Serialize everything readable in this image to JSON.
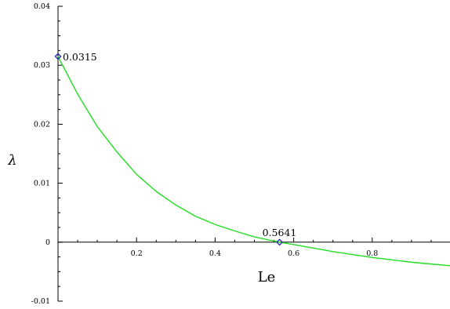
{
  "chart_data": {
    "type": "line",
    "xlabel": "Le",
    "ylabel": "λ",
    "xlim": [
      0,
      1
    ],
    "ylim": [
      -0.01,
      0.04
    ],
    "x_ticks": [
      {
        "value": 0.2,
        "label": "0.2"
      },
      {
        "value": 0.4,
        "label": "0.4"
      },
      {
        "value": 0.6,
        "label": "0.6"
      },
      {
        "value": 0.8,
        "label": "0.8"
      }
    ],
    "y_ticks": [
      {
        "value": -0.01,
        "label": "-0.01"
      },
      {
        "value": 0,
        "label": "0"
      },
      {
        "value": 0.01,
        "label": "0.01"
      },
      {
        "value": 0.02,
        "label": "0.02"
      },
      {
        "value": 0.03,
        "label": "0.03"
      },
      {
        "value": 0.04,
        "label": "0.04"
      }
    ],
    "grid": false,
    "series": [
      {
        "color": "#22dd22",
        "x": [
          0,
          0.05,
          0.1,
          0.15,
          0.2,
          0.25,
          0.3,
          0.35,
          0.4,
          0.45,
          0.5,
          0.5641,
          0.6,
          0.65,
          0.7,
          0.75,
          0.8,
          0.85,
          0.9,
          0.95,
          1.0
        ],
        "y": [
          0.0315,
          0.0251,
          0.0196,
          0.0153,
          0.0115,
          0.0086,
          0.0063,
          0.0044,
          0.003,
          0.0019,
          0.0009,
          0.0,
          -0.0004,
          -0.001,
          -0.0016,
          -0.0021,
          -0.0026,
          -0.003,
          -0.0034,
          -0.0037,
          -0.004
        ]
      }
    ],
    "marked_points": [
      {
        "x": 0,
        "y": 0.0315,
        "label": "0.0315"
      },
      {
        "x": 0.5641,
        "y": 0,
        "label": "0.5641"
      }
    ],
    "marker_color": "#2222aa"
  }
}
